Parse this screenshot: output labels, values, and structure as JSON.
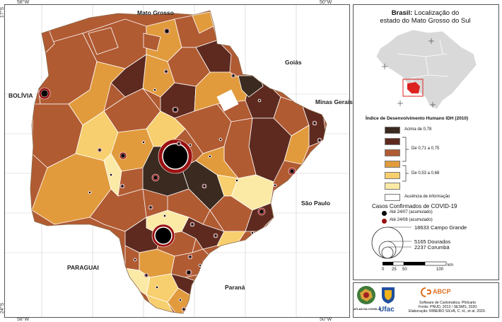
{
  "map": {
    "coords": {
      "top_left_lon": "58°W",
      "top_right_lon": "50°W",
      "bottom_left_lon": "58°W",
      "bottom_right_lon": "50°W",
      "lat_top": "17°S",
      "lat_bottom": "24°S"
    },
    "neighbors": {
      "mato_grosso": "Mato Grosso",
      "goias": "Goiás",
      "minas": "Minas Gerais",
      "bolivia": "BOLÍVIA",
      "sao_paulo": "São Paulo",
      "paraguai": "PARAGUAI",
      "parana": "Paraná"
    },
    "colors": {
      "cat1": "#3b2a20",
      "cat2": "#5e2a1f",
      "cat3": "#b15b33",
      "cat4": "#e19b3d",
      "cat5": "#f7cf6e",
      "cat6": "#fbe9a6",
      "none": "#ffffff"
    }
  },
  "legend": {
    "title_bold": "Brasil:",
    "title_rest": " Localização do",
    "title_line2": "estado do Mato Grosso do Sul",
    "idh_title": "Índice de Desenvolvimento Humano IDH (2010)",
    "idh_items": [
      {
        "label": "Acima de 0,78",
        "color": "#3b2a20"
      },
      {
        "label": "",
        "color": "#5e2a1f"
      },
      {
        "label": "",
        "color": "#b15b33"
      },
      {
        "label": "",
        "color": "#e19b3d"
      },
      {
        "label": "",
        "color": "#f7cf6e"
      },
      {
        "label": "",
        "color": "#fbe9a6"
      },
      {
        "label": "Ausência de informação",
        "color": "#ffffff"
      }
    ],
    "bracket_1": "De 0,71 a 0,75",
    "bracket_2": "De 0,53 a 0,68",
    "cases_title": "Casos Confirmados de COVID-19",
    "cases_items": [
      {
        "label": "Até 24/07 (acumulado)",
        "color": "#000000"
      },
      {
        "label": "Até 24/08 (acumulado)",
        "color": "#9b1111"
      }
    ],
    "circles": [
      {
        "value": "18633",
        "place": "Campo Grande"
      },
      {
        "value": "5165",
        "place": "Dourados"
      },
      {
        "value": "2237",
        "place": "Corumbá"
      }
    ],
    "scale": {
      "ticks": [
        "0",
        "25",
        "50",
        "100"
      ],
      "unit": "km"
    }
  },
  "credits": {
    "logo1": "ATLAS DA COVID-19",
    "logo2": "Ufac",
    "logo3": "ABCP",
    "line1": "Software de Cartomática: Philcarto",
    "line2": "Fonte: PNUD, 2013 / SESMS, 2020.",
    "line3": "Elaboração: RIBEIRO SILVA, C. H., et al. 2020."
  }
}
